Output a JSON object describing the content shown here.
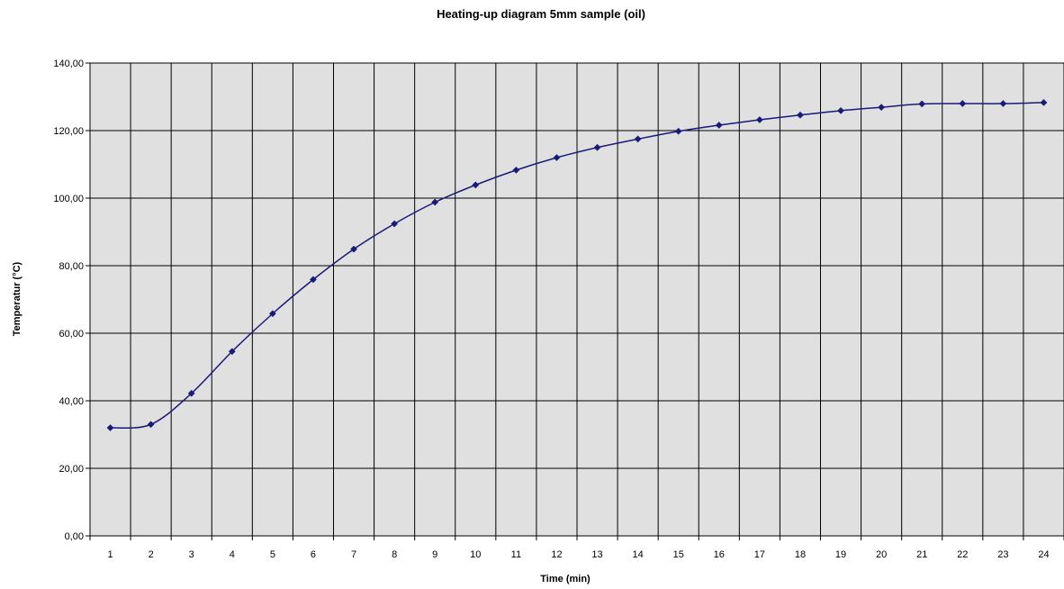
{
  "chart_data": {
    "type": "line",
    "title": "Heating-up diagram 5mm sample (oil)",
    "xlabel": "Time (min)",
    "ylabel": "Temperatur (°C)",
    "categories": [
      "1",
      "2",
      "3",
      "4",
      "5",
      "6",
      "7",
      "8",
      "9",
      "10",
      "11",
      "12",
      "13",
      "14",
      "15",
      "16",
      "17",
      "18",
      "19",
      "20",
      "21",
      "22",
      "23",
      "24"
    ],
    "y_tick_labels": [
      "0,00",
      "20,00",
      "40,00",
      "60,00",
      "80,00",
      "100,00",
      "120,00",
      "140,00"
    ],
    "ylim": [
      0,
      140
    ],
    "y_tick_step": 20,
    "grid": true,
    "legend": "none",
    "series": [
      {
        "values": [
          32.0,
          33.0,
          42.2,
          54.6,
          65.8,
          75.9,
          84.9,
          92.4,
          98.8,
          103.9,
          108.3,
          112.0,
          115.0,
          117.5,
          119.8,
          121.6,
          123.2,
          124.6,
          125.9,
          126.9,
          127.9,
          128.0,
          128.0,
          128.3
        ],
        "color": "#1a1a7a"
      }
    ],
    "colors": {
      "plot_background": "#e0e0e0",
      "grid": "#000000",
      "line": "#1a1a7a",
      "marker": "#1a1a7a"
    }
  }
}
